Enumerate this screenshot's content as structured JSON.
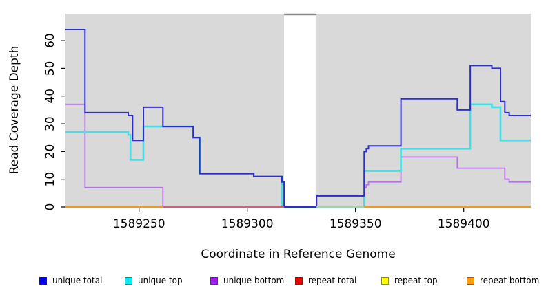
{
  "chart_data": {
    "type": "step-line",
    "title": "",
    "xlabel": "Coordinate in Reference Genome",
    "ylabel": "Read Coverage Depth",
    "xlim": [
      1589216,
      1589431
    ],
    "ylim": [
      0,
      69.7
    ],
    "x_ticks": [
      1589250,
      1589300,
      1589350,
      1589400
    ],
    "y_ticks": [
      0,
      10,
      20,
      30,
      40,
      50,
      60
    ],
    "grid": false,
    "legend_position": "bottom",
    "panel_bg": "#d9d9d9",
    "no_data_gap": {
      "from": 1589317,
      "to": 1589332,
      "top_line_color": "#8a8a8a"
    },
    "series": [
      {
        "name": "repeat total",
        "color": "#e23b3b",
        "width": 1.6,
        "points": [
          [
            1589216,
            0
          ]
        ]
      },
      {
        "name": "repeat top",
        "color": "#ffff00",
        "width": 1.6,
        "points": [
          [
            1589216,
            0
          ]
        ]
      },
      {
        "name": "repeat bottom",
        "color": "#ff9514",
        "width": 2,
        "points": [
          [
            1589216,
            0
          ]
        ]
      },
      {
        "name": "unique bottom",
        "color": "#b671e4",
        "width": 1.8,
        "points": [
          [
            1589216,
            37
          ],
          [
            1589225,
            7
          ],
          [
            1589261,
            0
          ],
          [
            1589332,
            4
          ],
          [
            1589354,
            7
          ],
          [
            1589355,
            8
          ],
          [
            1589356,
            9
          ],
          [
            1589371,
            18
          ],
          [
            1589397,
            14
          ],
          [
            1589419,
            10
          ],
          [
            1589421,
            9
          ]
        ]
      },
      {
        "name": "unique top",
        "color": "#4adce2",
        "width": 2.6,
        "points": [
          [
            1589216,
            27
          ],
          [
            1589245,
            26
          ],
          [
            1589246,
            17
          ],
          [
            1589252,
            29
          ],
          [
            1589275,
            25
          ],
          [
            1589278,
            12
          ],
          [
            1589303,
            11
          ],
          [
            1589316,
            0
          ],
          [
            1589354,
            13
          ],
          [
            1589371,
            21
          ],
          [
            1589403,
            37
          ],
          [
            1589413,
            36
          ],
          [
            1589417,
            24
          ]
        ]
      },
      {
        "name": "unique total",
        "color": "#2d2dd4",
        "width": 2,
        "points": [
          [
            1589216,
            64
          ],
          [
            1589225,
            34
          ],
          [
            1589245,
            33
          ],
          [
            1589247,
            24
          ],
          [
            1589252,
            36
          ],
          [
            1589261,
            29
          ],
          [
            1589275,
            25
          ],
          [
            1589278,
            12
          ],
          [
            1589303,
            11
          ],
          [
            1589316,
            9
          ],
          [
            1589317,
            0
          ],
          [
            1589332,
            4
          ],
          [
            1589354,
            20
          ],
          [
            1589355,
            21
          ],
          [
            1589356,
            22
          ],
          [
            1589371,
            39
          ],
          [
            1589397,
            35
          ],
          [
            1589403,
            51
          ],
          [
            1589413,
            50
          ],
          [
            1589417,
            38
          ],
          [
            1589419,
            34
          ],
          [
            1589421,
            33
          ]
        ]
      }
    ],
    "baseline_overlap_segments": [
      {
        "from": 1589216,
        "to": 1589261,
        "color": "#ff9514"
      },
      {
        "from": 1589261,
        "to": 1589317,
        "color": "#d15e7d"
      },
      {
        "from": 1589332,
        "to": 1589354,
        "color": "#9fd6a3"
      },
      {
        "from": 1589354,
        "to": 1589431,
        "color": "#ff9514"
      }
    ]
  },
  "legend": {
    "items": [
      {
        "label": "unique total",
        "color": "#0000ee"
      },
      {
        "label": "unique top",
        "color": "#00eeee"
      },
      {
        "label": "unique bottom",
        "color": "#a020f0"
      },
      {
        "label": "repeat total",
        "color": "#ee0000"
      },
      {
        "label": "repeat top",
        "color": "#ffff00"
      },
      {
        "label": "repeat bottom",
        "color": "#ff9d00"
      }
    ]
  }
}
